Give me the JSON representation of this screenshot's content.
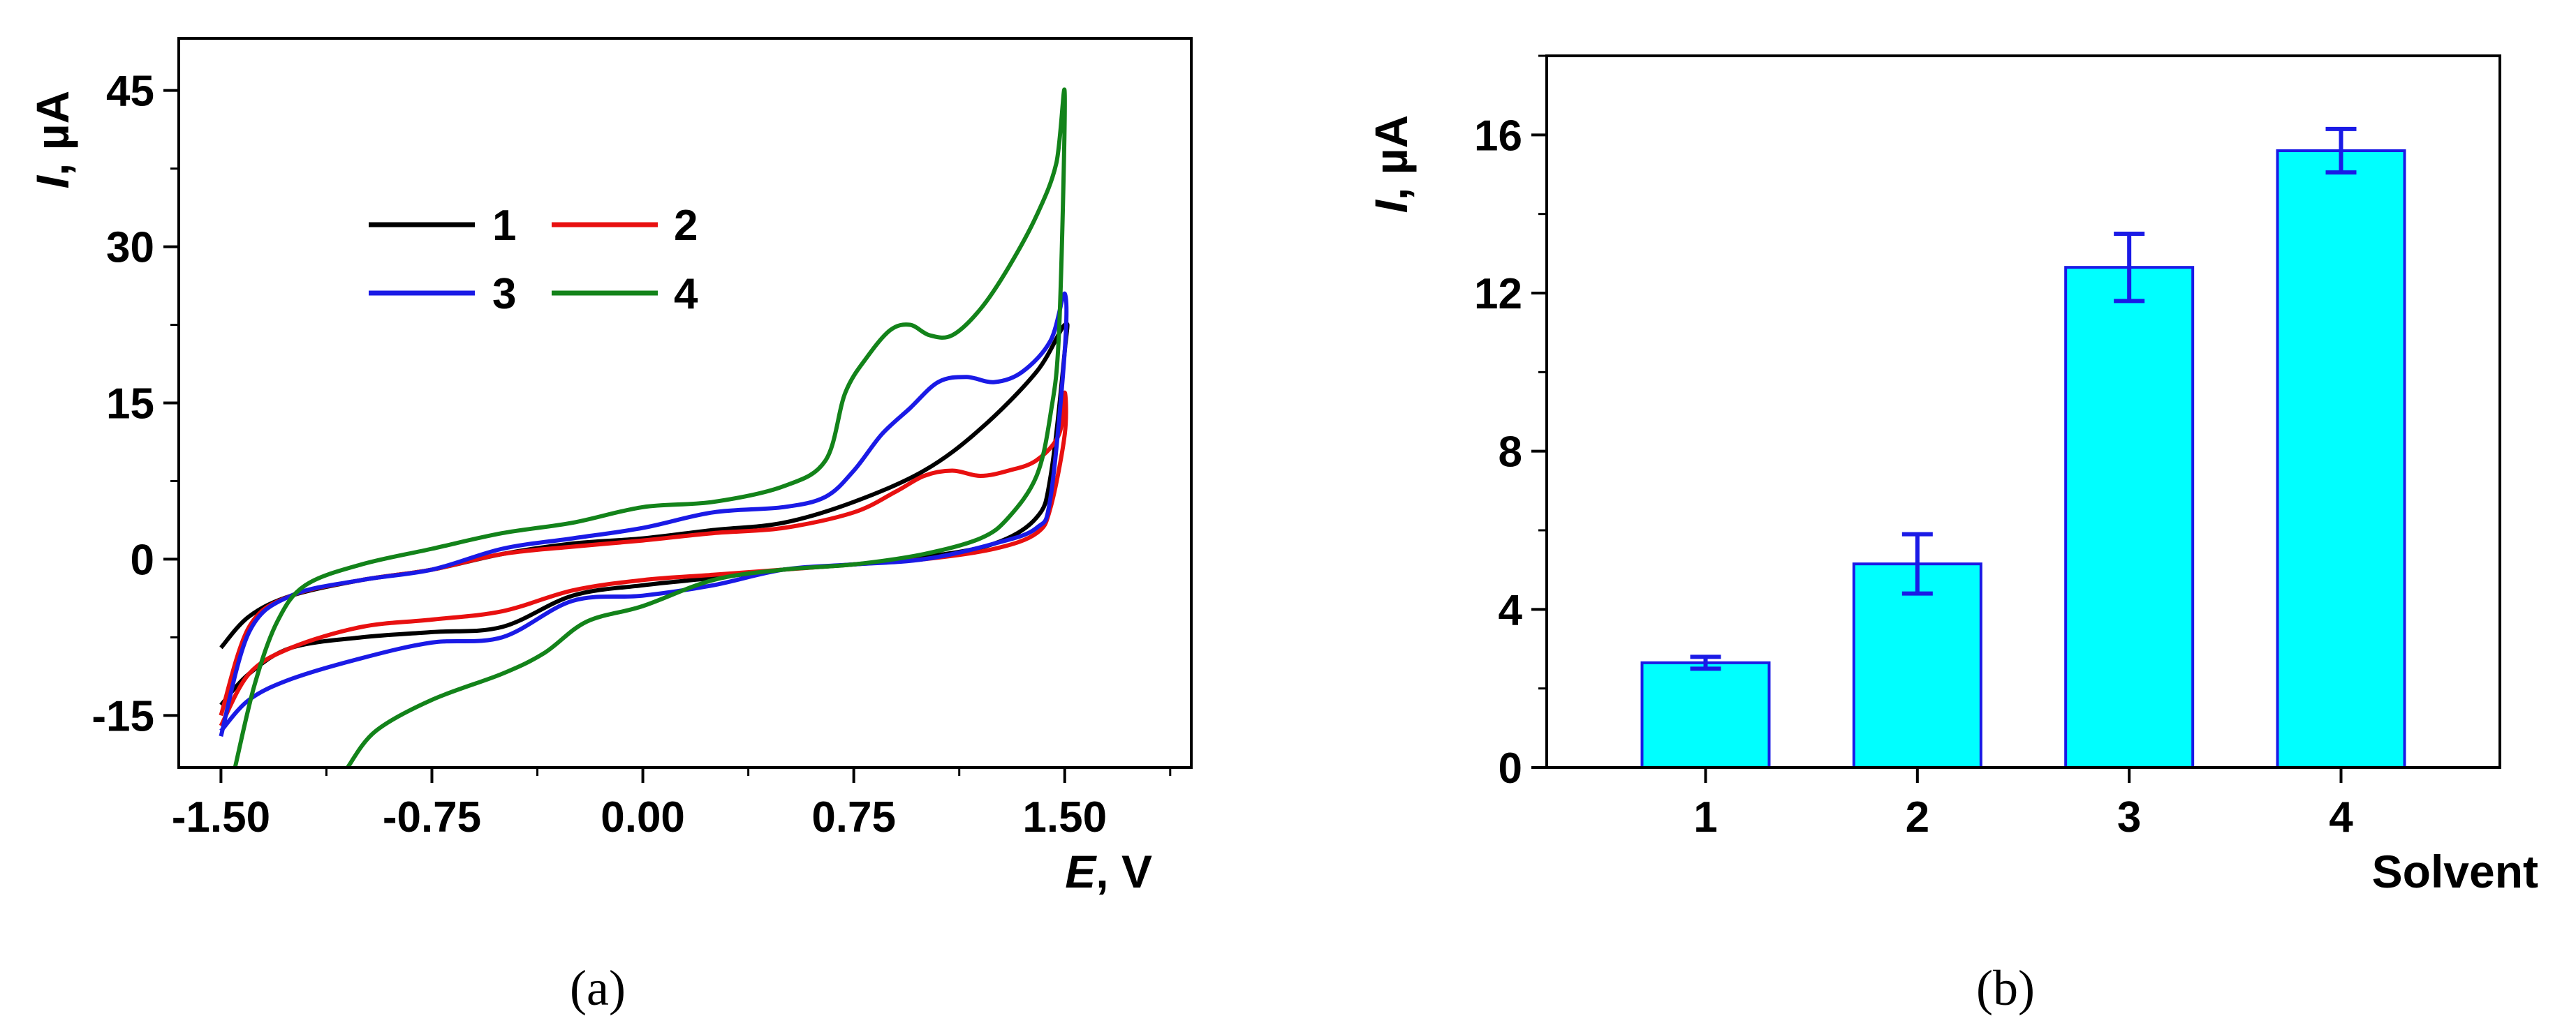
{
  "chart_data": [
    {
      "type": "line",
      "panel_label": "(a)",
      "xlabel_symbol": "E",
      "xlabel_unit": ", V",
      "ylabel_symbol": "I",
      "ylabel_unit": ", µA",
      "xlim": [
        -1.65,
        1.95
      ],
      "ylim": [
        -20,
        50
      ],
      "x_ticks": [
        -1.5,
        -0.75,
        0.0,
        0.75,
        1.5
      ],
      "x_tick_labels": [
        "-1.50",
        "-0.75",
        "0.00",
        "0.75",
        "1.50"
      ],
      "y_ticks": [
        -15,
        0,
        15,
        30,
        45
      ],
      "y_tick_labels": [
        "-15",
        "0",
        "15",
        "30",
        "45"
      ],
      "legend": {
        "placement": "upper-left",
        "entries": [
          "1",
          "2",
          "3",
          "4"
        ]
      },
      "series": [
        {
          "name": "1",
          "color": "#000000",
          "points": [
            [
              -1.5,
              -8.5
            ],
            [
              -1.4,
              -5.5
            ],
            [
              -1.25,
              -3.5
            ],
            [
              -1.0,
              -2.0
            ],
            [
              -0.75,
              -1.0
            ],
            [
              -0.5,
              0.5
            ],
            [
              -0.25,
              1.5
            ],
            [
              0.0,
              2.0
            ],
            [
              0.25,
              2.8
            ],
            [
              0.5,
              3.5
            ],
            [
              0.75,
              5.5
            ],
            [
              1.0,
              8.5
            ],
            [
              1.2,
              12.5
            ],
            [
              1.4,
              18.0
            ],
            [
              1.5,
              22.5
            ],
            [
              1.5,
              20.0
            ],
            [
              1.45,
              8.0
            ],
            [
              1.4,
              4.0
            ],
            [
              1.25,
              1.5
            ],
            [
              1.0,
              0.2
            ],
            [
              0.75,
              -0.5
            ],
            [
              0.5,
              -1.0
            ],
            [
              0.25,
              -1.8
            ],
            [
              0.0,
              -2.5
            ],
            [
              -0.25,
              -3.5
            ],
            [
              -0.5,
              -6.5
            ],
            [
              -0.75,
              -7.0
            ],
            [
              -1.0,
              -7.5
            ],
            [
              -1.25,
              -8.5
            ],
            [
              -1.4,
              -11.0
            ],
            [
              -1.5,
              -14.0
            ]
          ]
        },
        {
          "name": "2",
          "color": "#e81010",
          "points": [
            [
              -1.5,
              -15.0
            ],
            [
              -1.4,
              -6.5
            ],
            [
              -1.25,
              -3.5
            ],
            [
              -1.0,
              -2.0
            ],
            [
              -0.75,
              -1.0
            ],
            [
              -0.5,
              0.5
            ],
            [
              -0.25,
              1.2
            ],
            [
              0.0,
              1.8
            ],
            [
              0.25,
              2.5
            ],
            [
              0.5,
              3.0
            ],
            [
              0.75,
              4.5
            ],
            [
              0.9,
              6.5
            ],
            [
              1.0,
              8.0
            ],
            [
              1.1,
              8.5
            ],
            [
              1.2,
              8.0
            ],
            [
              1.3,
              8.5
            ],
            [
              1.4,
              9.5
            ],
            [
              1.48,
              12.0
            ],
            [
              1.5,
              16.0
            ],
            [
              1.5,
              12.0
            ],
            [
              1.45,
              5.0
            ],
            [
              1.4,
              2.5
            ],
            [
              1.25,
              1.0
            ],
            [
              1.0,
              0.0
            ],
            [
              0.75,
              -0.5
            ],
            [
              0.5,
              -1.0
            ],
            [
              0.25,
              -1.5
            ],
            [
              0.0,
              -2.0
            ],
            [
              -0.25,
              -3.0
            ],
            [
              -0.5,
              -5.0
            ],
            [
              -0.75,
              -5.8
            ],
            [
              -1.0,
              -6.5
            ],
            [
              -1.25,
              -8.5
            ],
            [
              -1.4,
              -11.0
            ],
            [
              -1.5,
              -16.0
            ]
          ]
        },
        {
          "name": "3",
          "color": "#1a1ae6",
          "points": [
            [
              -1.5,
              -17.0
            ],
            [
              -1.4,
              -7.0
            ],
            [
              -1.25,
              -3.5
            ],
            [
              -1.0,
              -2.0
            ],
            [
              -0.75,
              -1.0
            ],
            [
              -0.5,
              1.0
            ],
            [
              -0.25,
              2.0
            ],
            [
              0.0,
              3.0
            ],
            [
              0.25,
              4.5
            ],
            [
              0.5,
              5.0
            ],
            [
              0.65,
              6.0
            ],
            [
              0.75,
              8.5
            ],
            [
              0.85,
              12.0
            ],
            [
              0.95,
              14.5
            ],
            [
              1.05,
              17.0
            ],
            [
              1.15,
              17.5
            ],
            [
              1.25,
              17.0
            ],
            [
              1.35,
              18.0
            ],
            [
              1.45,
              21.0
            ],
            [
              1.5,
              25.5
            ],
            [
              1.5,
              20.0
            ],
            [
              1.45,
              6.0
            ],
            [
              1.4,
              3.0
            ],
            [
              1.25,
              1.5
            ],
            [
              1.0,
              0.0
            ],
            [
              0.75,
              -0.5
            ],
            [
              0.5,
              -1.0
            ],
            [
              0.25,
              -2.5
            ],
            [
              0.0,
              -3.5
            ],
            [
              -0.25,
              -4.0
            ],
            [
              -0.5,
              -7.5
            ],
            [
              -0.75,
              -8.0
            ],
            [
              -1.0,
              -9.5
            ],
            [
              -1.25,
              -11.5
            ],
            [
              -1.4,
              -13.5
            ],
            [
              -1.5,
              -16.5
            ]
          ]
        },
        {
          "name": "4",
          "color": "#13831a",
          "points": [
            [
              -1.45,
              -20.0
            ],
            [
              -1.38,
              -12.0
            ],
            [
              -1.3,
              -6.0
            ],
            [
              -1.2,
              -2.5
            ],
            [
              -1.0,
              -0.5
            ],
            [
              -0.75,
              1.0
            ],
            [
              -0.5,
              2.5
            ],
            [
              -0.25,
              3.5
            ],
            [
              0.0,
              5.0
            ],
            [
              0.25,
              5.5
            ],
            [
              0.5,
              7.0
            ],
            [
              0.65,
              9.5
            ],
            [
              0.72,
              16.0
            ],
            [
              0.8,
              19.5
            ],
            [
              0.88,
              22.0
            ],
            [
              0.95,
              22.5
            ],
            [
              1.02,
              21.5
            ],
            [
              1.1,
              21.5
            ],
            [
              1.2,
              24.0
            ],
            [
              1.3,
              28.0
            ],
            [
              1.4,
              33.0
            ],
            [
              1.47,
              38.0
            ],
            [
              1.5,
              44.5
            ],
            [
              1.48,
              22.0
            ],
            [
              1.45,
              14.0
            ],
            [
              1.4,
              8.0
            ],
            [
              1.3,
              4.0
            ],
            [
              1.2,
              2.0
            ],
            [
              1.0,
              0.5
            ],
            [
              0.75,
              -0.5
            ],
            [
              0.5,
              -1.0
            ],
            [
              0.25,
              -2.0
            ],
            [
              0.0,
              -4.5
            ],
            [
              -0.2,
              -6.0
            ],
            [
              -0.35,
              -9.0
            ],
            [
              -0.5,
              -11.0
            ],
            [
              -0.75,
              -13.5
            ],
            [
              -0.95,
              -16.5
            ],
            [
              -1.05,
              -20.0
            ]
          ]
        }
      ]
    },
    {
      "type": "bar",
      "panel_label": "(b)",
      "xlabel": "Solvent",
      "ylabel_symbol": "I",
      "ylabel_unit": ", µA",
      "ylim": [
        0,
        18
      ],
      "y_ticks": [
        0,
        4,
        8,
        12,
        16
      ],
      "y_tick_labels": [
        "0",
        "4",
        "8",
        "12",
        "16"
      ],
      "categories": [
        "1",
        "2",
        "3",
        "4"
      ],
      "values": [
        2.65,
        5.15,
        12.65,
        15.6
      ],
      "errors": [
        0.15,
        0.75,
        0.85,
        0.55
      ],
      "bar_color": "#00ffff",
      "bar_edge_color": "#1a1ae6",
      "error_color": "#1a1ae6"
    }
  ]
}
